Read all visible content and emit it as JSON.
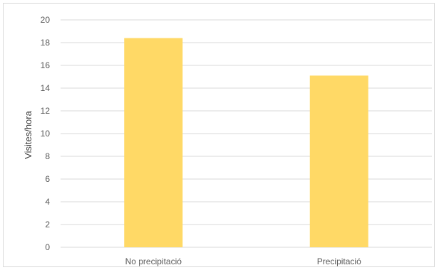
{
  "chart_data": {
    "type": "bar",
    "title": "",
    "xlabel": "",
    "ylabel": "Visites/hora",
    "categories": [
      "No precipitació",
      "Precipitació"
    ],
    "values": [
      18.4,
      15.1
    ],
    "ylim": [
      0,
      20
    ],
    "yticks": [
      0,
      2,
      4,
      6,
      8,
      10,
      12,
      14,
      16,
      18,
      20
    ],
    "grid": true,
    "legend": "none",
    "bar_color": "#FFD966",
    "grid_color": "#d9d9d9"
  }
}
